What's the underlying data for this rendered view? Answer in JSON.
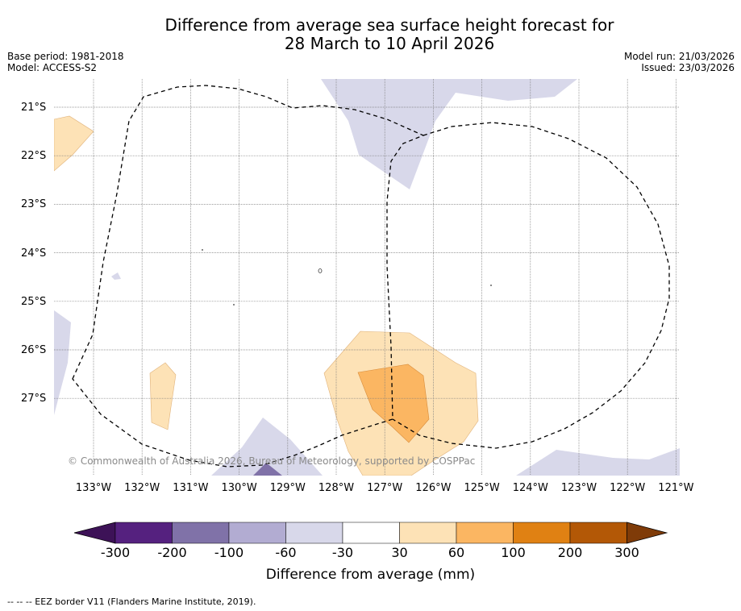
{
  "title": {
    "line1": "Difference from average sea surface height forecast for",
    "line2": "28 March to 10 April 2026"
  },
  "meta_left": {
    "base_period": "Base period: 1981-2018",
    "model": "Model: ACCESS-S2"
  },
  "meta_right": {
    "model_run": "Model run: 21/03/2026",
    "issued": "Issued: 23/03/2026"
  },
  "map": {
    "lat_labels": [
      "21°S",
      "22°S",
      "23°S",
      "24°S",
      "25°S",
      "26°S",
      "27°S"
    ],
    "lon_labels": [
      "133°W",
      "132°W",
      "131°W",
      "130°W",
      "129°W",
      "128°W",
      "127°W",
      "126°W",
      "125°W",
      "124°W",
      "123°W",
      "122°W",
      "121°W"
    ],
    "copyright": "© Commonwealth of Australia 2026, Bureau of Meteorology, supported by COSPPac"
  },
  "colorbar": {
    "ticks": [
      "-300",
      "-200",
      "-100",
      "-60",
      "-30",
      "30",
      "60",
      "100",
      "200",
      "300"
    ],
    "colors": [
      "#3d1257",
      "#55217f",
      "#8072a8",
      "#b2acd2",
      "#d8d8ea",
      "#ffffff",
      "#fde2b6",
      "#fbb662",
      "#e08113",
      "#b35806",
      "#7f3b08"
    ],
    "label": "Difference from average (mm)"
  },
  "footer": "--  --  -- EEZ border V11 (Flanders Marine Institute, 2019)."
}
